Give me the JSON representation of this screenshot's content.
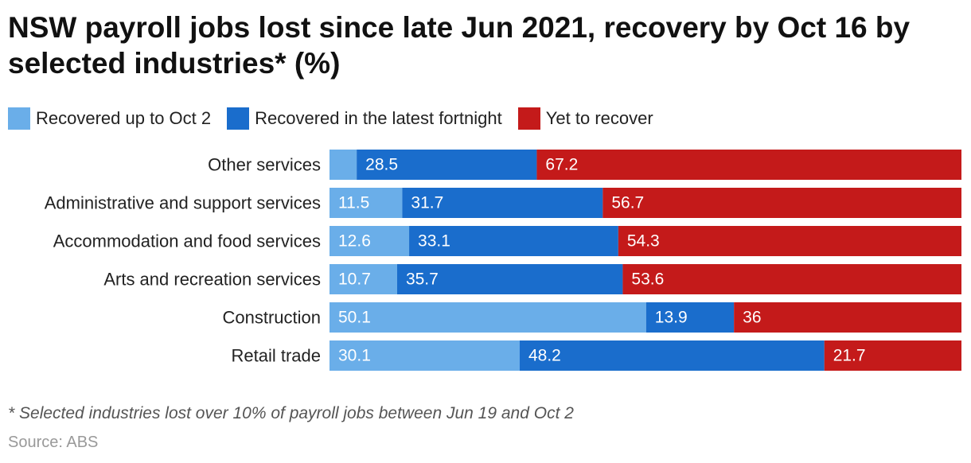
{
  "title": "NSW payroll jobs lost since late Jun 2021, recovery by Oct 16 by selected industries* (%)",
  "footnote": "* Selected industries lost over 10% of payroll jobs between Jun 19 and Oct 2",
  "source": "Source: ABS",
  "colors": {
    "recovered_oct2": "#6aaee9",
    "recovered_fortnight": "#1a6dcc",
    "yet_to_recover": "#c41a1a"
  },
  "chart_data": {
    "type": "bar",
    "orientation": "horizontal",
    "stacked": true,
    "legend_position": "top-left",
    "categories": [
      "Other services",
      "Administrative and support services",
      "Accommodation and food services",
      "Arts and recreation services",
      "Construction",
      "Retail trade"
    ],
    "series": [
      {
        "name": "Recovered up to Oct 2",
        "values": [
          4.3,
          11.5,
          12.6,
          10.7,
          50.1,
          30.1
        ],
        "labels": [
          "",
          "11.5",
          "12.6",
          "10.7",
          "50.1",
          "30.1"
        ]
      },
      {
        "name": "Recovered in the latest fortnight",
        "values": [
          28.5,
          31.7,
          33.1,
          35.7,
          13.9,
          48.2
        ],
        "labels": [
          "28.5",
          "31.7",
          "33.1",
          "35.7",
          "13.9",
          "48.2"
        ]
      },
      {
        "name": "Yet to recover",
        "values": [
          67.2,
          56.7,
          54.3,
          53.6,
          36,
          21.7
        ],
        "labels": [
          "67.2",
          "56.7",
          "54.3",
          "53.6",
          "36",
          "21.7"
        ]
      }
    ]
  }
}
